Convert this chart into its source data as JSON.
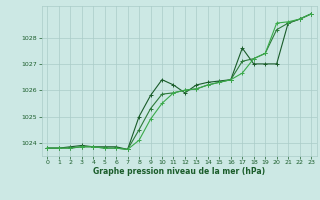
{
  "xlabel": "Graphe pression niveau de la mer (hPa)",
  "background_color": "#cce8e4",
  "grid_color": "#aaccc8",
  "line_color_dark": "#1a5c2a",
  "line_color_mid": "#2d7a3a",
  "line_color_light": "#3aaa4a",
  "ylim": [
    1023.5,
    1029.2
  ],
  "xlim": [
    -0.5,
    23.5
  ],
  "yticks": [
    1024,
    1025,
    1026,
    1027,
    1028
  ],
  "xticks": [
    0,
    1,
    2,
    3,
    4,
    5,
    6,
    7,
    8,
    9,
    10,
    11,
    12,
    13,
    14,
    15,
    16,
    17,
    18,
    19,
    20,
    21,
    22,
    23
  ],
  "series1": {
    "x": [
      0,
      1,
      2,
      3,
      4,
      5,
      6,
      7,
      8,
      9,
      10,
      11,
      12,
      13,
      14,
      15,
      16,
      17,
      18,
      19,
      20,
      21,
      22,
      23
    ],
    "y": [
      1023.8,
      1023.8,
      1023.85,
      1023.9,
      1023.85,
      1023.85,
      1023.85,
      1023.75,
      1025.0,
      1025.8,
      1026.4,
      1026.2,
      1025.9,
      1026.2,
      1026.3,
      1026.35,
      1026.4,
      1027.6,
      1027.0,
      1027.0,
      1027.0,
      1028.55,
      1028.7,
      1028.9
    ]
  },
  "series2": {
    "x": [
      0,
      1,
      2,
      3,
      4,
      5,
      6,
      7,
      8,
      9,
      10,
      11,
      12,
      13,
      14,
      15,
      16,
      17,
      18,
      19,
      20,
      21,
      22,
      23
    ],
    "y": [
      1023.8,
      1023.8,
      1023.8,
      1023.85,
      1023.85,
      1023.8,
      1023.8,
      1023.75,
      1024.5,
      1025.3,
      1025.85,
      1025.9,
      1026.0,
      1026.05,
      1026.2,
      1026.3,
      1026.4,
      1027.1,
      1027.2,
      1027.4,
      1028.3,
      1028.55,
      1028.7,
      1028.9
    ]
  },
  "series3": {
    "x": [
      0,
      1,
      2,
      3,
      4,
      5,
      6,
      7,
      8,
      9,
      10,
      11,
      12,
      13,
      14,
      15,
      16,
      17,
      18,
      19,
      20,
      21,
      22,
      23
    ],
    "y": [
      1023.8,
      1023.8,
      1023.8,
      1023.85,
      1023.85,
      1023.8,
      1023.8,
      1023.75,
      1024.1,
      1024.9,
      1025.5,
      1025.9,
      1026.0,
      1026.05,
      1026.2,
      1026.3,
      1026.4,
      1026.65,
      1027.2,
      1027.4,
      1028.55,
      1028.6,
      1028.7,
      1028.9
    ]
  }
}
